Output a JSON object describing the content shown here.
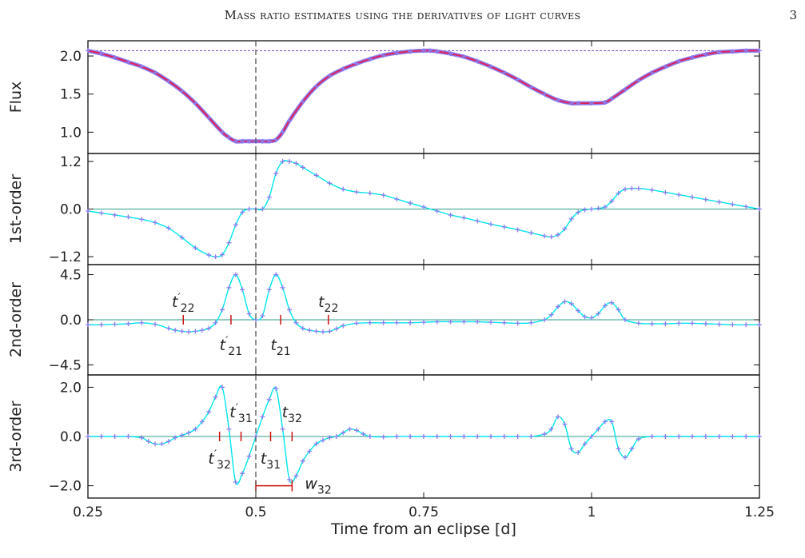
{
  "header": {
    "title": "Mass ratio estimates using the derivatives of light curves",
    "page_number": "3"
  },
  "colors": {
    "curve": "#00e5ee",
    "markers": "#8a7cf0",
    "top_curve": "#e0205a",
    "zero_line": "#2e9e88",
    "reference_line": "#7b3fc4",
    "eclipse_line": "#555555",
    "tick_marks": "#cc1111"
  },
  "xaxis": {
    "label": "Time from an eclipse [d]",
    "range": [
      0.25,
      1.25
    ],
    "ticks": [
      0.25,
      0.5,
      0.75,
      1.0,
      1.25
    ],
    "tick_labels": [
      "0.25",
      "0.5",
      "0.75",
      "1",
      "1.25"
    ]
  },
  "eclipse_time": 0.5,
  "chart_data": [
    {
      "type": "line",
      "panel": "flux",
      "ylabel": "Flux",
      "ylim": [
        0.72,
        2.2
      ],
      "yticks": [
        1.0,
        1.5,
        2.0
      ],
      "ytick_labels": [
        "1.0",
        "1.5",
        "2.0"
      ],
      "reference_level": 2.07,
      "x": [
        0.25,
        0.27,
        0.29,
        0.31,
        0.33,
        0.35,
        0.37,
        0.39,
        0.41,
        0.43,
        0.45,
        0.46,
        0.47,
        0.48,
        0.49,
        0.5,
        0.51,
        0.52,
        0.53,
        0.54,
        0.55,
        0.57,
        0.59,
        0.61,
        0.63,
        0.65,
        0.67,
        0.69,
        0.71,
        0.73,
        0.75,
        0.76,
        0.77,
        0.79,
        0.81,
        0.83,
        0.85,
        0.87,
        0.89,
        0.91,
        0.93,
        0.95,
        0.97,
        0.98,
        1.0,
        1.02,
        1.03,
        1.05,
        1.07,
        1.09,
        1.11,
        1.13,
        1.15,
        1.17,
        1.19,
        1.21,
        1.23,
        1.25
      ],
      "y": [
        2.07,
        2.03,
        1.98,
        1.92,
        1.86,
        1.78,
        1.67,
        1.54,
        1.38,
        1.19,
        1.0,
        0.93,
        0.88,
        0.88,
        0.88,
        0.88,
        0.88,
        0.88,
        0.9,
        1.0,
        1.15,
        1.4,
        1.6,
        1.74,
        1.83,
        1.9,
        1.96,
        2.01,
        2.04,
        2.06,
        2.07,
        2.07,
        2.06,
        2.03,
        1.99,
        1.93,
        1.86,
        1.78,
        1.69,
        1.59,
        1.5,
        1.42,
        1.38,
        1.38,
        1.38,
        1.39,
        1.44,
        1.56,
        1.68,
        1.78,
        1.86,
        1.93,
        1.98,
        2.02,
        2.05,
        2.06,
        2.07,
        2.07
      ]
    },
    {
      "type": "line",
      "panel": "1st-order",
      "ylabel": "1st-order",
      "ylim": [
        -1.4,
        1.4
      ],
      "yticks": [
        -1.2,
        0.0,
        1.2
      ],
      "ytick_labels": [
        "−1.2",
        "0.0",
        "1.2"
      ],
      "x": [
        0.25,
        0.27,
        0.29,
        0.31,
        0.33,
        0.35,
        0.37,
        0.39,
        0.41,
        0.43,
        0.44,
        0.45,
        0.46,
        0.47,
        0.48,
        0.49,
        0.5,
        0.51,
        0.52,
        0.53,
        0.54,
        0.55,
        0.56,
        0.57,
        0.59,
        0.61,
        0.63,
        0.65,
        0.67,
        0.69,
        0.71,
        0.73,
        0.75,
        0.77,
        0.79,
        0.81,
        0.83,
        0.85,
        0.87,
        0.89,
        0.91,
        0.93,
        0.94,
        0.95,
        0.96,
        0.97,
        0.98,
        0.99,
        1.0,
        1.01,
        1.02,
        1.03,
        1.04,
        1.05,
        1.06,
        1.07,
        1.09,
        1.11,
        1.13,
        1.15,
        1.17,
        1.19,
        1.21,
        1.23,
        1.25
      ],
      "y": [
        -0.05,
        -0.1,
        -0.15,
        -0.2,
        -0.26,
        -0.34,
        -0.48,
        -0.72,
        -0.98,
        -1.16,
        -1.2,
        -1.15,
        -0.85,
        -0.4,
        -0.08,
        0.0,
        0.0,
        0.0,
        0.3,
        0.9,
        1.2,
        1.2,
        1.15,
        1.05,
        0.85,
        0.65,
        0.5,
        0.43,
        0.4,
        0.35,
        0.25,
        0.15,
        0.05,
        -0.05,
        -0.15,
        -0.22,
        -0.3,
        -0.38,
        -0.45,
        -0.52,
        -0.6,
        -0.68,
        -0.7,
        -0.65,
        -0.5,
        -0.25,
        -0.08,
        -0.02,
        0.0,
        0.02,
        0.05,
        0.2,
        0.4,
        0.5,
        0.52,
        0.52,
        0.48,
        0.42,
        0.36,
        0.3,
        0.24,
        0.18,
        0.12,
        0.06,
        0.0
      ]
    },
    {
      "type": "line",
      "panel": "2nd-order",
      "ylabel": "2nd-order",
      "ylim": [
        -5.5,
        5.5
      ],
      "yticks": [
        -4.5,
        0.0,
        4.5
      ],
      "ytick_labels": [
        "−4.5",
        "0.0",
        "4.5"
      ],
      "x": [
        0.25,
        0.27,
        0.29,
        0.31,
        0.33,
        0.35,
        0.37,
        0.38,
        0.39,
        0.4,
        0.41,
        0.42,
        0.43,
        0.44,
        0.45,
        0.46,
        0.47,
        0.48,
        0.49,
        0.5,
        0.51,
        0.52,
        0.53,
        0.54,
        0.55,
        0.56,
        0.57,
        0.58,
        0.59,
        0.6,
        0.61,
        0.62,
        0.63,
        0.65,
        0.67,
        0.69,
        0.71,
        0.73,
        0.75,
        0.77,
        0.79,
        0.81,
        0.83,
        0.85,
        0.87,
        0.89,
        0.91,
        0.93,
        0.94,
        0.95,
        0.96,
        0.97,
        0.98,
        0.99,
        1.0,
        1.01,
        1.02,
        1.03,
        1.04,
        1.05,
        1.07,
        1.09,
        1.11,
        1.13,
        1.15,
        1.17,
        1.19,
        1.21,
        1.23,
        1.25
      ],
      "y": [
        -0.5,
        -0.5,
        -0.45,
        -0.4,
        -0.3,
        -0.45,
        -0.85,
        -1.05,
        -1.15,
        -1.2,
        -1.15,
        -1.05,
        -0.85,
        -0.3,
        1.0,
        3.2,
        4.5,
        3.0,
        0.6,
        0.0,
        0.4,
        3.0,
        4.5,
        3.2,
        1.0,
        -0.3,
        -0.85,
        -1.05,
        -1.15,
        -1.2,
        -1.15,
        -0.9,
        -0.6,
        -0.35,
        -0.3,
        -0.3,
        -0.3,
        -0.3,
        -0.25,
        -0.2,
        -0.2,
        -0.2,
        -0.2,
        -0.25,
        -0.3,
        -0.35,
        -0.3,
        0.0,
        0.5,
        1.3,
        1.8,
        1.6,
        0.9,
        0.3,
        0.2,
        0.6,
        1.4,
        1.7,
        1.0,
        0.0,
        -0.35,
        -0.4,
        -0.4,
        -0.35,
        -0.35,
        -0.4,
        -0.45,
        -0.5,
        -0.5,
        -0.5
      ]
    },
    {
      "type": "line",
      "panel": "3rd-order",
      "ylabel": "3rd-order",
      "ylim": [
        -2.5,
        2.5
      ],
      "yticks": [
        -2.0,
        0.0,
        2.0
      ],
      "ytick_labels": [
        "−2.0",
        "0.0",
        "2.0"
      ],
      "x": [
        0.25,
        0.27,
        0.29,
        0.31,
        0.33,
        0.34,
        0.35,
        0.36,
        0.37,
        0.38,
        0.39,
        0.4,
        0.41,
        0.42,
        0.43,
        0.44,
        0.45,
        0.46,
        0.47,
        0.48,
        0.49,
        0.5,
        0.51,
        0.52,
        0.53,
        0.54,
        0.55,
        0.56,
        0.57,
        0.58,
        0.59,
        0.6,
        0.61,
        0.62,
        0.63,
        0.64,
        0.65,
        0.66,
        0.67,
        0.69,
        0.71,
        0.73,
        0.75,
        0.77,
        0.79,
        0.81,
        0.83,
        0.85,
        0.87,
        0.89,
        0.91,
        0.93,
        0.94,
        0.95,
        0.96,
        0.97,
        0.98,
        0.99,
        1.0,
        1.01,
        1.02,
        1.03,
        1.04,
        1.05,
        1.06,
        1.07,
        1.09,
        1.11,
        1.13,
        1.15,
        1.17,
        1.19,
        1.21,
        1.23,
        1.25
      ],
      "y": [
        0.0,
        0.0,
        0.0,
        0.0,
        -0.05,
        -0.2,
        -0.3,
        -0.3,
        -0.2,
        -0.05,
        0.05,
        0.15,
        0.3,
        0.6,
        1.0,
        1.6,
        2.0,
        0.3,
        -1.85,
        -1.5,
        -0.8,
        0.0,
        0.8,
        1.5,
        1.95,
        0.3,
        -1.75,
        -1.6,
        -1.0,
        -0.6,
        -0.3,
        -0.15,
        -0.05,
        0.0,
        0.15,
        0.3,
        0.25,
        0.1,
        0.0,
        -0.02,
        0.0,
        0.0,
        0.0,
        0.0,
        0.0,
        0.0,
        0.0,
        0.0,
        0.0,
        0.0,
        0.0,
        0.1,
        0.3,
        0.8,
        0.5,
        -0.5,
        -0.65,
        -0.3,
        0.0,
        0.3,
        0.6,
        0.6,
        -0.5,
        -0.85,
        -0.5,
        -0.1,
        0.0,
        0.0,
        0.0,
        0.0,
        0.0,
        0.0,
        0.0,
        0.0,
        0.0
      ]
    }
  ],
  "annotations": {
    "second_order": [
      {
        "name": "t-prime-22",
        "label_main": "t",
        "label_prime": "′",
        "label_sub": "22",
        "x": 0.392,
        "side": "above"
      },
      {
        "name": "t-prime-21",
        "label_main": "t",
        "label_prime": "′",
        "label_sub": "21",
        "x": 0.463,
        "side": "below"
      },
      {
        "name": "t-21",
        "label_main": "t",
        "label_prime": "",
        "label_sub": "21",
        "x": 0.537,
        "side": "below"
      },
      {
        "name": "t-22",
        "label_main": "t",
        "label_prime": "",
        "label_sub": "22",
        "x": 0.608,
        "side": "above"
      }
    ],
    "third_order": [
      {
        "name": "t-prime-32",
        "label_main": "t",
        "label_prime": "′",
        "label_sub": "32",
        "x": 0.446,
        "side": "below"
      },
      {
        "name": "t-prime-31",
        "label_main": "t",
        "label_prime": "′",
        "label_sub": "31",
        "x": 0.478,
        "side": "above"
      },
      {
        "name": "t-31",
        "label_main": "t",
        "label_prime": "",
        "label_sub": "31",
        "x": 0.522,
        "side": "below"
      },
      {
        "name": "t-32",
        "label_main": "t",
        "label_prime": "",
        "label_sub": "32",
        "x": 0.554,
        "side": "above"
      }
    ],
    "width_marker": {
      "label_main": "w",
      "label_sub": "32",
      "x_start": 0.5,
      "x_end": 0.554,
      "y": -2.0
    }
  }
}
